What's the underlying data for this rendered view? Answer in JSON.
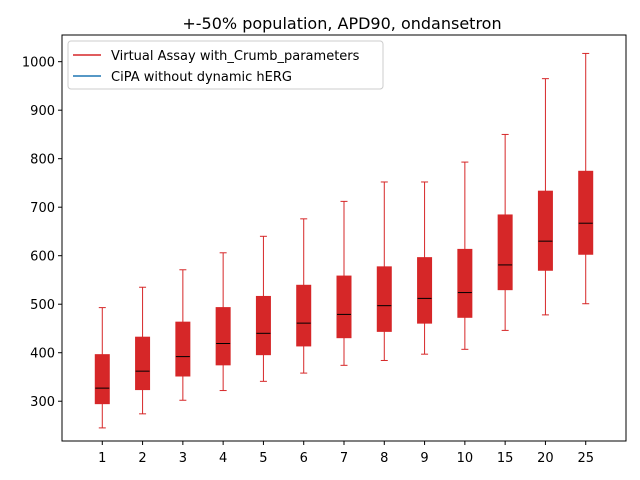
{
  "chart_data": {
    "type": "box",
    "title": "+-50% population, APD90, ondansetron",
    "xlabel": "",
    "ylabel": "",
    "categories": [
      "1",
      "2",
      "3",
      "4",
      "5",
      "6",
      "7",
      "8",
      "9",
      "10",
      "15",
      "20",
      "25"
    ],
    "y_ticks": [
      300,
      400,
      500,
      600,
      700,
      800,
      900,
      1000
    ],
    "ylim": [
      218,
      1055
    ],
    "grid": false,
    "legend_position": "top-left",
    "legend": [
      {
        "label": "Virtual Assay with_Crumb_parameters",
        "color": "#d62728"
      },
      {
        "label": "CiPA without dynamic hERG",
        "color": "#1f77b4"
      }
    ],
    "series": [
      {
        "name": "Virtual Assay with_Crumb_parameters",
        "color": "#d62728",
        "boxes": [
          {
            "category": "1",
            "min": 245,
            "q1": 295,
            "median": 327,
            "q3": 396,
            "max": 493
          },
          {
            "category": "2",
            "min": 274,
            "q1": 324,
            "median": 362,
            "q3": 432,
            "max": 535
          },
          {
            "category": "3",
            "min": 302,
            "q1": 352,
            "median": 392,
            "q3": 463,
            "max": 571
          },
          {
            "category": "4",
            "min": 322,
            "q1": 375,
            "median": 419,
            "q3": 493,
            "max": 606
          },
          {
            "category": "5",
            "min": 341,
            "q1": 396,
            "median": 440,
            "q3": 516,
            "max": 640
          },
          {
            "category": "6",
            "min": 358,
            "q1": 414,
            "median": 461,
            "q3": 539,
            "max": 676
          },
          {
            "category": "7",
            "min": 374,
            "q1": 431,
            "median": 479,
            "q3": 558,
            "max": 712
          },
          {
            "category": "8",
            "min": 384,
            "q1": 444,
            "median": 497,
            "q3": 577,
            "max": 752
          },
          {
            "category": "9",
            "min": 397,
            "q1": 461,
            "median": 512,
            "q3": 596,
            "max": 752
          },
          {
            "category": "10",
            "min": 407,
            "q1": 473,
            "median": 524,
            "q3": 613,
            "max": 793
          },
          {
            "category": "15",
            "min": 446,
            "q1": 530,
            "median": 581,
            "q3": 684,
            "max": 850
          },
          {
            "category": "20",
            "min": 478,
            "q1": 570,
            "median": 630,
            "q3": 733,
            "max": 965
          },
          {
            "category": "25",
            "min": 501,
            "q1": 603,
            "median": 667,
            "q3": 774,
            "max": 1017
          }
        ]
      }
    ]
  }
}
